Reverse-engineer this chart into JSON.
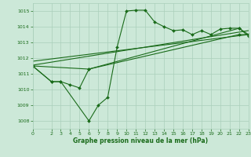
{
  "xlabel": "Graphe pression niveau de la mer (hPa)",
  "background_color": "#cce8d8",
  "grid_color": "#aacfbb",
  "line_color": "#1a6b1a",
  "xlim": [
    0,
    23
  ],
  "ylim": [
    1007.5,
    1015.5
  ],
  "yticks": [
    1008,
    1009,
    1010,
    1011,
    1012,
    1013,
    1014,
    1015
  ],
  "xticks": [
    0,
    2,
    3,
    4,
    5,
    6,
    7,
    8,
    9,
    10,
    11,
    12,
    13,
    14,
    15,
    16,
    17,
    18,
    19,
    20,
    21,
    22,
    23
  ],
  "line1": {
    "x": [
      0,
      2,
      3,
      6,
      7,
      8,
      9,
      10,
      11,
      12,
      13,
      14,
      15,
      16,
      17,
      18,
      19,
      20,
      21,
      22,
      23
    ],
    "y": [
      1011.5,
      1010.5,
      1010.5,
      1008.0,
      1009.0,
      1009.5,
      1012.7,
      1015.0,
      1015.05,
      1015.05,
      1014.3,
      1014.0,
      1013.75,
      1013.8,
      1013.5,
      1013.75,
      1013.5,
      1013.85,
      1013.9,
      1013.9,
      1013.4
    ]
  },
  "line2": {
    "x": [
      0,
      2,
      3,
      4,
      5,
      6,
      22,
      23
    ],
    "y": [
      1011.5,
      1010.5,
      1010.5,
      1010.3,
      1010.1,
      1011.3,
      1013.9,
      1013.5
    ]
  },
  "line3": {
    "x": [
      0,
      6,
      22,
      23
    ],
    "y": [
      1011.5,
      1011.3,
      1013.5,
      1013.5
    ]
  },
  "line4_trend": {
    "x": [
      0,
      23
    ],
    "y": [
      1011.8,
      1013.5
    ]
  },
  "line5_trend": {
    "x": [
      0,
      23
    ],
    "y": [
      1011.55,
      1013.75
    ]
  }
}
